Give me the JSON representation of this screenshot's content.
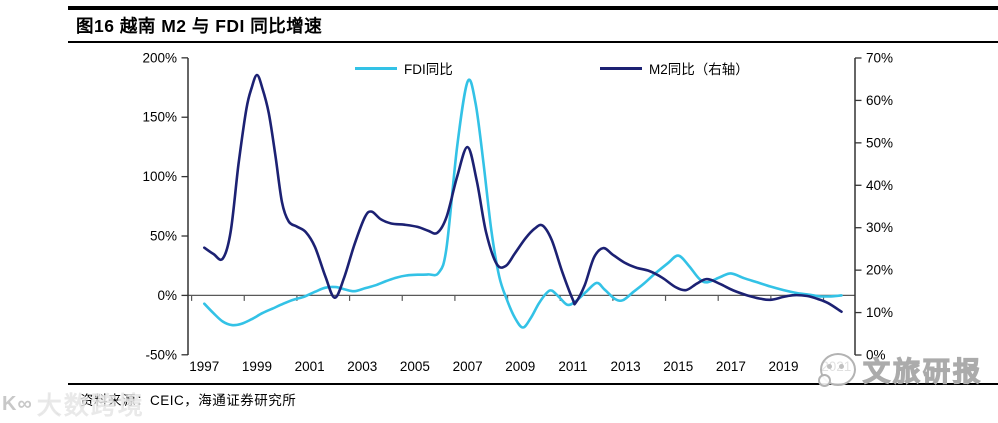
{
  "header": {
    "title": "图16 越南 M2 与 FDI 同比增速"
  },
  "legend": [
    {
      "label": "FDI同比",
      "color": "#33C2E6"
    },
    {
      "label": "M2同比（右轴）",
      "color": "#1C2173"
    }
  ],
  "footer": {
    "source": "资料来源：CEIC，海通证券研究所"
  },
  "watermarks": {
    "left_logo": "K∞",
    "left_text": "大数跨境",
    "right_text": "文旅研报"
  },
  "chart_data": {
    "type": "line",
    "title": "图16 越南 M2 与 FDI 同比增速",
    "grid": "off",
    "legend_position": "top",
    "x_axis": {
      "labels": [
        "1997",
        "1999",
        "2001",
        "2003",
        "2005",
        "2007",
        "2009",
        "2011",
        "2013",
        "2015",
        "2017",
        "2019",
        "2021"
      ]
    },
    "left_axis": {
      "labels": [
        "200%",
        "150%",
        "100%",
        "50%",
        "0%",
        "-50%"
      ],
      "range": [
        -50,
        200
      ],
      "unit": "%"
    },
    "right_axis": {
      "labels": [
        "70%",
        "60%",
        "50%",
        "40%",
        "30%",
        "20%",
        "10%",
        "0%"
      ],
      "range": [
        0,
        70
      ],
      "unit": "%"
    },
    "series": [
      {
        "name": "FDI同比",
        "axis": "left",
        "color": "#33C2E6",
        "unit": "%",
        "points": [
          [
            1997.0,
            -7
          ],
          [
            1997.35,
            -15
          ],
          [
            1997.7,
            -22
          ],
          [
            1998.05,
            -25
          ],
          [
            1998.4,
            -24
          ],
          [
            1998.8,
            -20
          ],
          [
            1999.2,
            -15
          ],
          [
            1999.6,
            -11
          ],
          [
            2000.0,
            -7
          ],
          [
            2000.4,
            -3.5
          ],
          [
            2000.8,
            -1
          ],
          [
            2001.2,
            3
          ],
          [
            2001.6,
            6.5
          ],
          [
            2002.0,
            7
          ],
          [
            2002.35,
            5
          ],
          [
            2002.7,
            3.5
          ],
          [
            2003.1,
            6
          ],
          [
            2003.5,
            8.5
          ],
          [
            2003.9,
            12
          ],
          [
            2004.3,
            15
          ],
          [
            2004.7,
            16.8
          ],
          [
            2005.1,
            17.4
          ],
          [
            2005.5,
            17.7
          ],
          [
            2005.9,
            19
          ],
          [
            2006.2,
            40
          ],
          [
            2006.6,
            125
          ],
          [
            2007.0,
            180
          ],
          [
            2007.3,
            162
          ],
          [
            2007.6,
            112
          ],
          [
            2007.9,
            55
          ],
          [
            2008.2,
            16
          ],
          [
            2008.5,
            -4
          ],
          [
            2008.8,
            -19
          ],
          [
            2009.1,
            -27
          ],
          [
            2009.4,
            -19
          ],
          [
            2009.7,
            -7
          ],
          [
            2010.0,
            2
          ],
          [
            2010.2,
            4
          ],
          [
            2010.5,
            -2
          ],
          [
            2010.8,
            -8
          ],
          [
            2011.1,
            -5
          ],
          [
            2011.5,
            3
          ],
          [
            2011.9,
            10.5
          ],
          [
            2012.2,
            5
          ],
          [
            2012.6,
            -3
          ],
          [
            2012.9,
            -4
          ],
          [
            2013.3,
            3
          ],
          [
            2013.7,
            10
          ],
          [
            2014.1,
            18
          ],
          [
            2014.6,
            27
          ],
          [
            2015.0,
            33.5
          ],
          [
            2015.4,
            25
          ],
          [
            2015.8,
            14
          ],
          [
            2016.1,
            11
          ],
          [
            2016.6,
            15.5
          ],
          [
            2017.0,
            18.5
          ],
          [
            2017.5,
            14.5
          ],
          [
            2018.0,
            11
          ],
          [
            2018.5,
            7.5
          ],
          [
            2019.0,
            4.5
          ],
          [
            2019.5,
            2
          ],
          [
            2020.0,
            0.5
          ],
          [
            2020.4,
            -0.8
          ],
          [
            2020.8,
            -0.8
          ],
          [
            2021.2,
            0
          ]
        ]
      },
      {
        "name": "M2同比（右轴）",
        "axis": "right",
        "color": "#1C2173",
        "unit": "%",
        "points": [
          [
            1997.0,
            25.3
          ],
          [
            1997.35,
            23.8
          ],
          [
            1997.7,
            22.7
          ],
          [
            1998.0,
            29
          ],
          [
            1998.3,
            45
          ],
          [
            1998.6,
            58
          ],
          [
            1998.8,
            63
          ],
          [
            1999.0,
            66
          ],
          [
            1999.2,
            63
          ],
          [
            1999.45,
            57
          ],
          [
            1999.7,
            47
          ],
          [
            1999.95,
            36
          ],
          [
            2000.2,
            31.5
          ],
          [
            2000.5,
            30.3
          ],
          [
            2000.85,
            29
          ],
          [
            2001.2,
            25.5
          ],
          [
            2001.6,
            18.5
          ],
          [
            2001.95,
            13.5
          ],
          [
            2002.3,
            18
          ],
          [
            2002.7,
            26
          ],
          [
            2003.1,
            32.5
          ],
          [
            2003.35,
            33.8
          ],
          [
            2003.7,
            32
          ],
          [
            2004.1,
            31
          ],
          [
            2004.6,
            30.7
          ],
          [
            2005.1,
            30.2
          ],
          [
            2005.5,
            29.3
          ],
          [
            2005.85,
            28.8
          ],
          [
            2006.2,
            32.5
          ],
          [
            2006.6,
            42
          ],
          [
            2007.0,
            49
          ],
          [
            2007.35,
            41
          ],
          [
            2007.7,
            29
          ],
          [
            2008.1,
            21.5
          ],
          [
            2008.45,
            21
          ],
          [
            2008.8,
            24
          ],
          [
            2009.2,
            27.5
          ],
          [
            2009.55,
            29.8
          ],
          [
            2009.85,
            30.5
          ],
          [
            2010.2,
            27
          ],
          [
            2010.6,
            19.5
          ],
          [
            2011.0,
            13
          ],
          [
            2011.1,
            12.3
          ],
          [
            2011.45,
            16.5
          ],
          [
            2011.8,
            23
          ],
          [
            2012.15,
            25.2
          ],
          [
            2012.5,
            23.7
          ],
          [
            2012.95,
            21.8
          ],
          [
            2013.4,
            20.6
          ],
          [
            2013.9,
            19.8
          ],
          [
            2014.4,
            18.2
          ],
          [
            2014.9,
            16
          ],
          [
            2015.3,
            15.3
          ],
          [
            2015.7,
            16.8
          ],
          [
            2016.1,
            17.9
          ],
          [
            2016.6,
            16.7
          ],
          [
            2017.1,
            15.2
          ],
          [
            2017.6,
            14.1
          ],
          [
            2018.1,
            13.3
          ],
          [
            2018.5,
            13
          ],
          [
            2019.0,
            13.7
          ],
          [
            2019.4,
            14.1
          ],
          [
            2019.9,
            13.9
          ],
          [
            2020.3,
            13.2
          ],
          [
            2020.7,
            12.2
          ],
          [
            2021.2,
            10.2
          ]
        ]
      }
    ]
  }
}
